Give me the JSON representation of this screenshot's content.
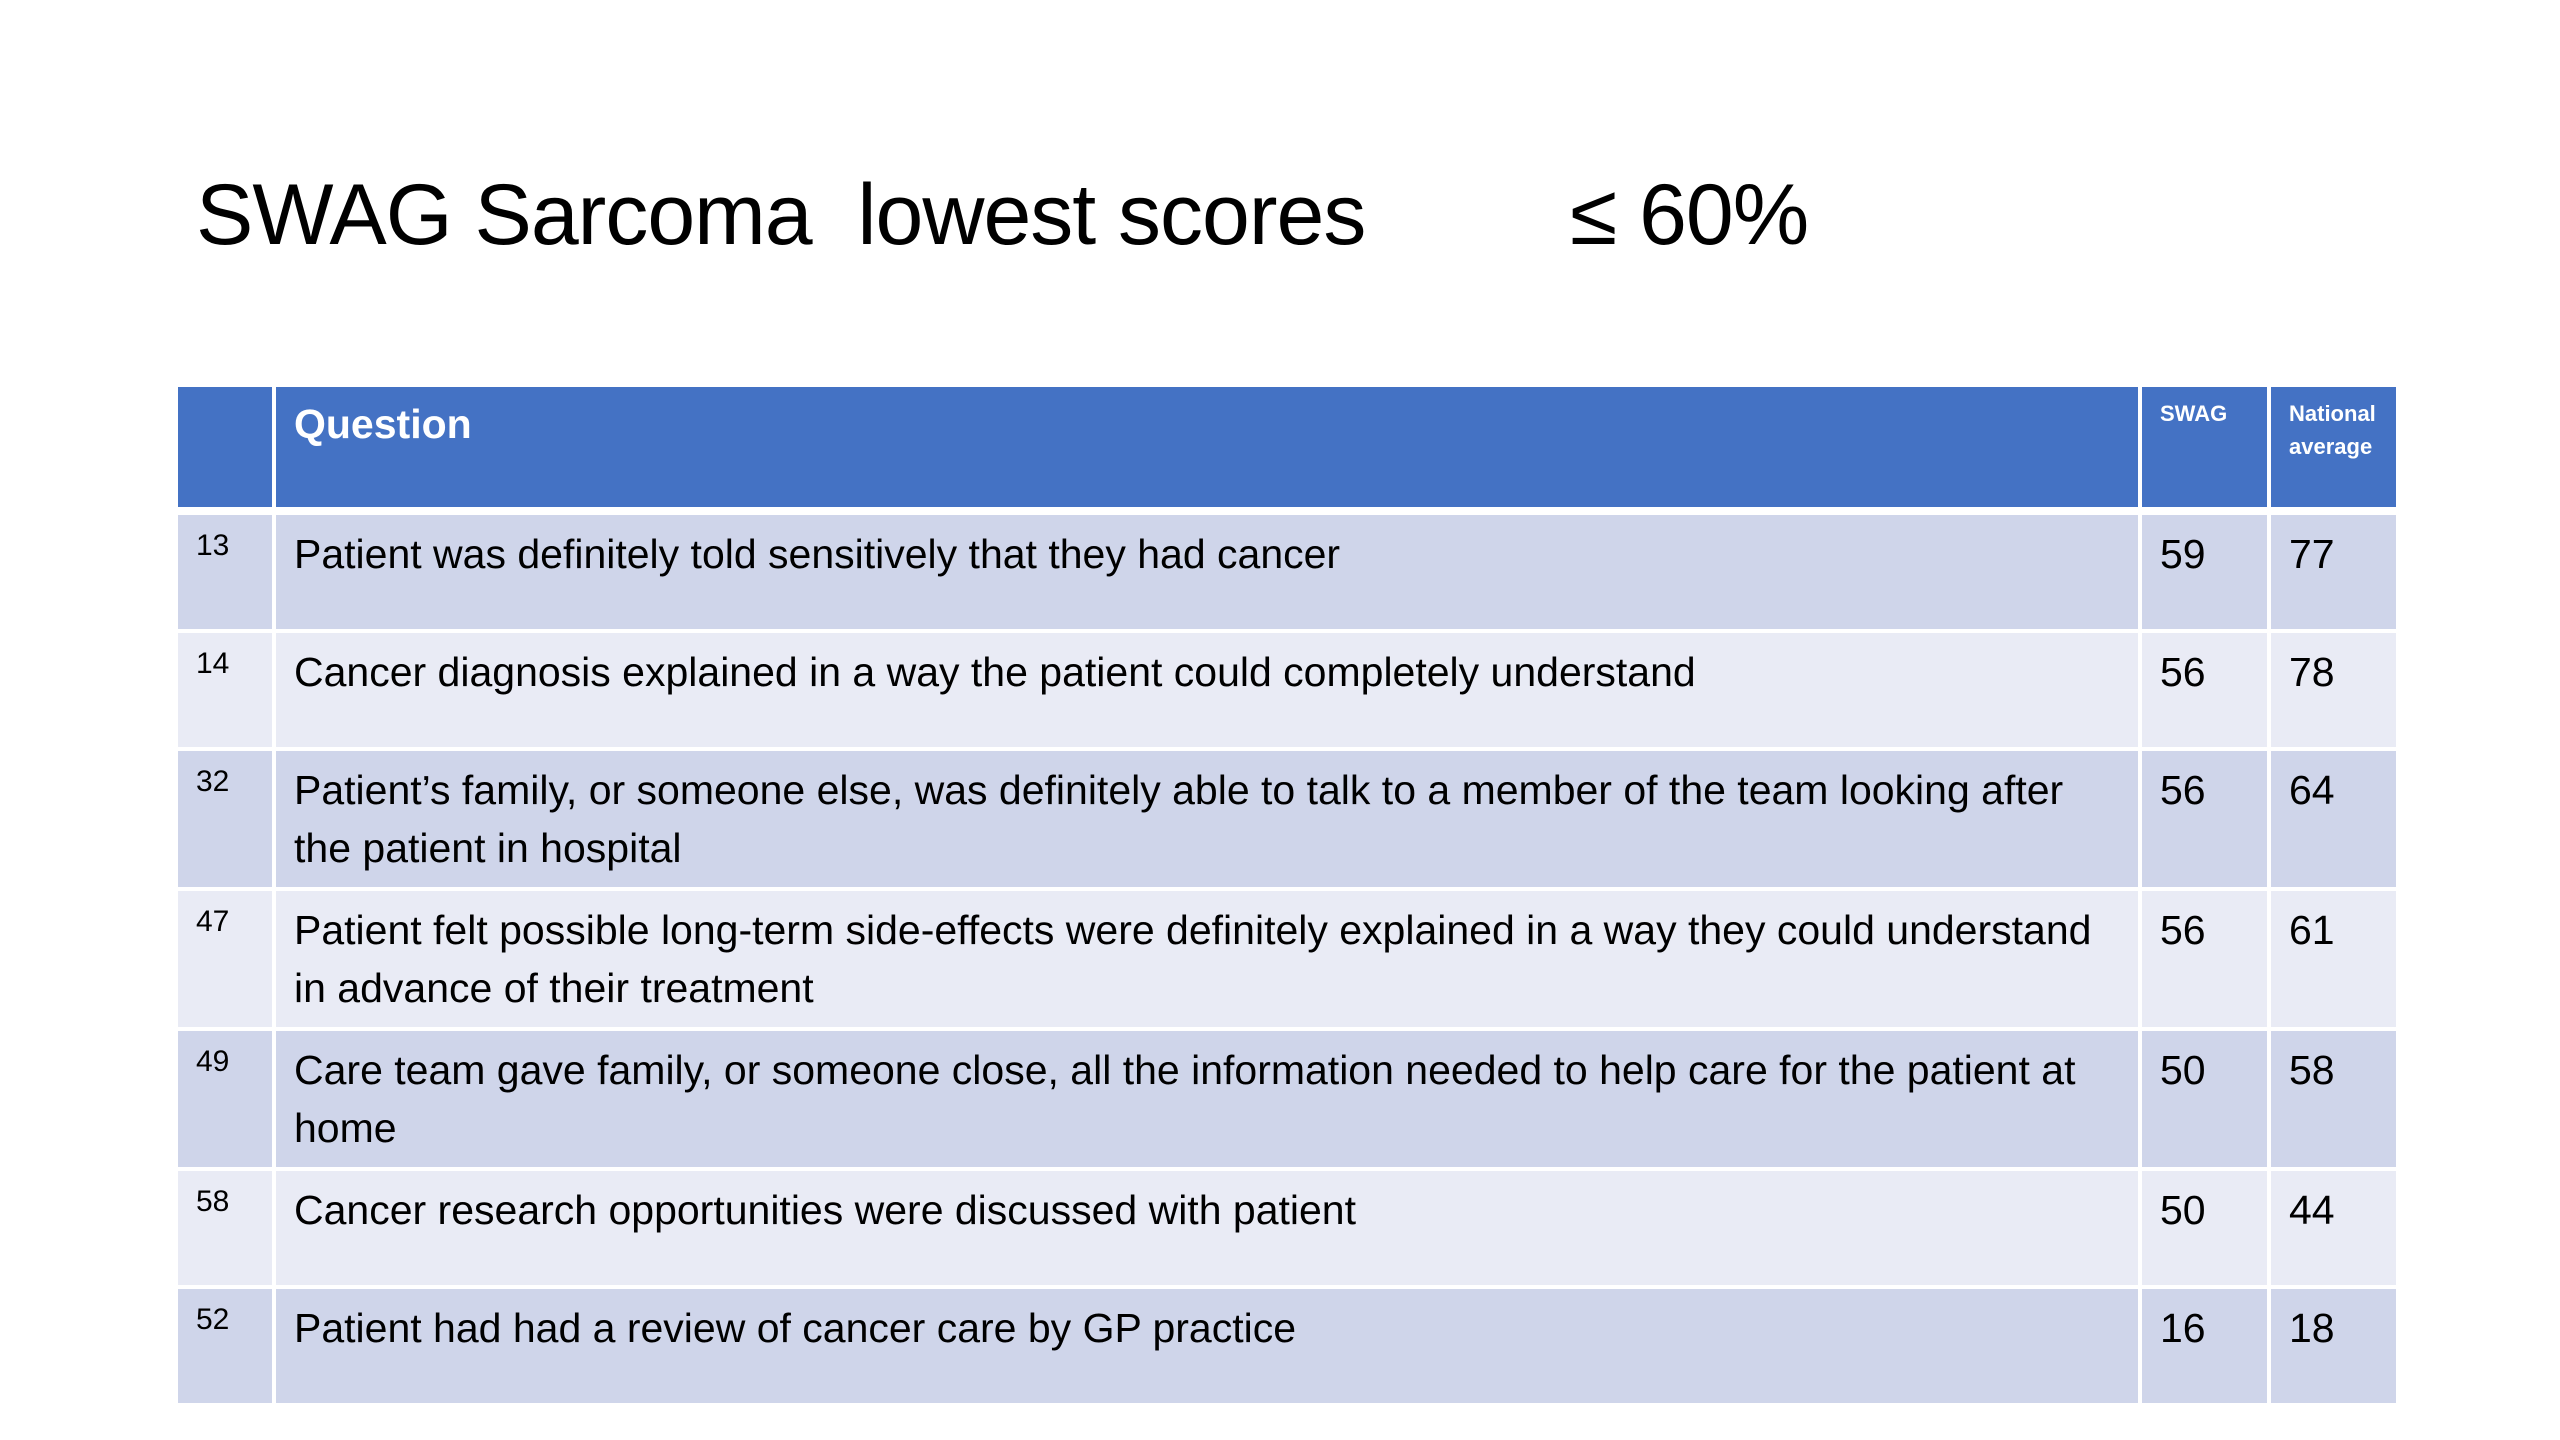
{
  "slide": {
    "title": "SWAG Sarcoma  lowest scores",
    "threshold": "≤ 60%"
  },
  "table": {
    "headers": {
      "num": "",
      "question": "Question",
      "swag": "SWAG",
      "national": "National average"
    },
    "rows": [
      {
        "num": "13",
        "question": "Patient was definitely told sensitively that they had cancer",
        "swag": "59",
        "national": "77"
      },
      {
        "num": "14",
        "question": "Cancer diagnosis explained in a way the patient could completely understand",
        "swag": "56",
        "national": "78"
      },
      {
        "num": "32",
        "question": "Patient’s family, or someone else, was definitely able to talk to a member of the team looking after the patient in hospital",
        "swag": "56",
        "national": "64"
      },
      {
        "num": "47",
        "question": "Patient felt possible long-term side-effects were definitely explained in a way they could understand in advance of their treatment",
        "swag": "56",
        "national": "61"
      },
      {
        "num": "49",
        "question": "Care team gave family, or someone close, all the information needed to help care for the patient at home",
        "swag": "50",
        "national": "58"
      },
      {
        "num": "58",
        "question": "Cancer research opportunities were discussed with patient",
        "swag": "50",
        "national": "44"
      },
      {
        "num": "52",
        "question": "Patient had had a review of cancer care by GP practice",
        "swag": "16",
        "national": "18"
      }
    ]
  },
  "colors": {
    "header_bg": "#4472c4",
    "row_dark": "#cfd5ea",
    "row_light": "#e9ebf5"
  }
}
